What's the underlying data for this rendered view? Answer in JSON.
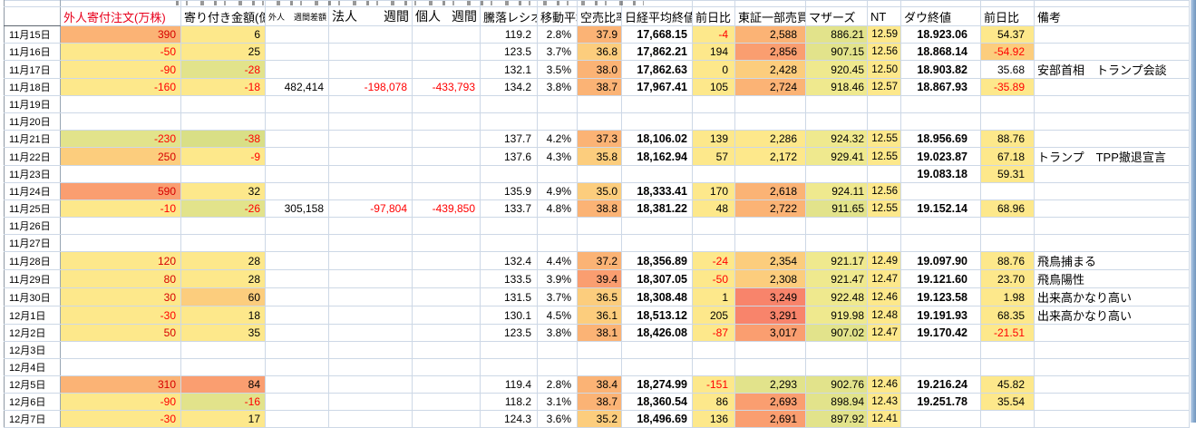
{
  "sheet": {
    "headers": {
      "a": "",
      "b": "外人寄付注文(万株)",
      "c": "寄り付き金額(億)",
      "d_left": "外人",
      "d_right": "週間差額",
      "e_left": "法人",
      "e_right": "週間",
      "f_left": "個人",
      "f_right": "週間",
      "g": "騰落レシオ",
      "h": "移動平均",
      "i": "空売比率",
      "j": "日経平均終値",
      "k": "前日比",
      "l": "東証一部売買",
      "m": "マザーズ",
      "n": "NT",
      "o": "ダウ終値",
      "p": "前日比",
      "q": "備考"
    },
    "column_order": [
      "b",
      "c",
      "d",
      "e",
      "f",
      "g",
      "h",
      "i",
      "j",
      "k",
      "l",
      "m",
      "n",
      "o",
      "p",
      "q"
    ],
    "colors": {
      "y": "#FDE88B",
      "y2": "#EFE98E",
      "yg": "#E2E38B",
      "yg2": "#D9DF86",
      "o1": "#F8846B",
      "o2": "#FA9E70",
      "o3": "#FBB375",
      "o4": "#FCCD7D",
      "header_pink": "#F8BCC4",
      "negative_text": "#FF0000",
      "gridline": "#CDD8E6"
    },
    "rows": [
      {
        "date": "11月15日",
        "cells": {
          "b": [
            "390",
            "o3"
          ],
          "c": [
            "6",
            "y"
          ],
          "g": [
            "119.2"
          ],
          "h": [
            "2.8%"
          ],
          "i": [
            "37.9",
            "o3"
          ],
          "j": [
            "17,668.15"
          ],
          "k": [
            "-4",
            "y"
          ],
          "l": [
            "2,588",
            "o3"
          ],
          "m": [
            "886.21",
            "yg"
          ],
          "n": [
            "12.59",
            "y"
          ],
          "o": [
            "18.923.06"
          ],
          "p": [
            "54.37",
            "y"
          ]
        }
      },
      {
        "date": "11月16日",
        "cells": {
          "b": [
            "-50",
            "y"
          ],
          "c": [
            "25",
            "y"
          ],
          "g": [
            "123.5"
          ],
          "h": [
            "3.7%"
          ],
          "i": [
            "36.8",
            "o4"
          ],
          "j": [
            "17,862.21"
          ],
          "k": [
            "194",
            "y"
          ],
          "l": [
            "2,856",
            "o2"
          ],
          "m": [
            "907.15",
            "yg"
          ],
          "n": [
            "12.56",
            "y"
          ],
          "o": [
            "18.868.14"
          ],
          "p": [
            "-54.92",
            "o4"
          ]
        }
      },
      {
        "date": "11月17日",
        "cells": {
          "b": [
            "-90",
            "y"
          ],
          "c": [
            "-28",
            "yg"
          ],
          "g": [
            "132.1"
          ],
          "h": [
            "3.5%"
          ],
          "i": [
            "38.0",
            "o3"
          ],
          "j": [
            "17,862.63"
          ],
          "k": [
            "0",
            "y"
          ],
          "l": [
            "2,428",
            "o4"
          ],
          "m": [
            "920.45",
            "y2"
          ],
          "n": [
            "12.50",
            "y"
          ],
          "o": [
            "18.903.82"
          ],
          "p": [
            "35.68"
          ],
          "q": [
            "安部首相　トランプ会談"
          ]
        }
      },
      {
        "date": "11月18日",
        "cells": {
          "b": [
            "-160",
            "y"
          ],
          "c": [
            "-18",
            "y"
          ],
          "d": [
            "482,414"
          ],
          "e": [
            "-198,078"
          ],
          "f": [
            "-433,793"
          ],
          "g": [
            "134.2"
          ],
          "h": [
            "3.8%"
          ],
          "i": [
            "38.7",
            "o3"
          ],
          "j": [
            "17,967.41"
          ],
          "k": [
            "105",
            "y"
          ],
          "l": [
            "2,724",
            "o3"
          ],
          "m": [
            "918.46",
            "y2"
          ],
          "n": [
            "12.57",
            "y"
          ],
          "o": [
            "18.867.93"
          ],
          "p": [
            "-35.89",
            "y"
          ]
        }
      },
      {
        "date": "11月19日",
        "cells": {}
      },
      {
        "date": "11月20日",
        "cells": {}
      },
      {
        "date": "11月21日",
        "cells": {
          "b": [
            "-230",
            "yg"
          ],
          "c": [
            "-38",
            "yg2"
          ],
          "g": [
            "137.7"
          ],
          "h": [
            "4.2%"
          ],
          "i": [
            "37.3",
            "o3"
          ],
          "j": [
            "18,106.02"
          ],
          "k": [
            "139",
            "y"
          ],
          "l": [
            "2,286",
            "y"
          ],
          "m": [
            "924.32",
            "y2"
          ],
          "n": [
            "12.55",
            "y"
          ],
          "o": [
            "18.956.69"
          ],
          "p": [
            "88.76",
            "y"
          ]
        }
      },
      {
        "date": "11月22日",
        "cells": {
          "b": [
            "250",
            "o4"
          ],
          "c": [
            "-9",
            "y"
          ],
          "g": [
            "137.6"
          ],
          "h": [
            "4.3%"
          ],
          "i": [
            "35.8",
            "o4"
          ],
          "j": [
            "18,162.94"
          ],
          "k": [
            "57",
            "y"
          ],
          "l": [
            "2,172",
            "y"
          ],
          "m": [
            "929.41",
            "y2"
          ],
          "n": [
            "12.55",
            "y"
          ],
          "o": [
            "19.023.87"
          ],
          "p": [
            "67.18",
            "y"
          ],
          "q": [
            "トランプ　TPP撤退宣言"
          ]
        }
      },
      {
        "date": "11月23日",
        "cells": {
          "o": [
            "19.083.18"
          ],
          "p": [
            "59.31",
            "y"
          ]
        }
      },
      {
        "date": "11月24日",
        "cells": {
          "b": [
            "590",
            "o2"
          ],
          "c": [
            "32",
            "y"
          ],
          "g": [
            "135.9"
          ],
          "h": [
            "4.9%"
          ],
          "i": [
            "35.0",
            "o4"
          ],
          "j": [
            "18,333.41"
          ],
          "k": [
            "170",
            "y"
          ],
          "l": [
            "2,618",
            "o3"
          ],
          "m": [
            "924.11",
            "y2"
          ],
          "n": [
            "12.56",
            "y"
          ]
        }
      },
      {
        "date": "11月25日",
        "cells": {
          "b": [
            "-10",
            "y"
          ],
          "c": [
            "-26",
            "yg"
          ],
          "d": [
            "305,158"
          ],
          "e": [
            "-97,804"
          ],
          "f": [
            "-439,850"
          ],
          "g": [
            "133.7"
          ],
          "h": [
            "4.8%"
          ],
          "i": [
            "38.8",
            "o3"
          ],
          "j": [
            "18,381.22"
          ],
          "k": [
            "48",
            "y"
          ],
          "l": [
            "2,722",
            "o3"
          ],
          "m": [
            "911.65",
            "yg"
          ],
          "n": [
            "12.55",
            "y"
          ],
          "o": [
            "19.152.14"
          ],
          "p": [
            "68.96",
            "y"
          ]
        }
      },
      {
        "date": "11月26日",
        "cells": {}
      },
      {
        "date": "11月27日",
        "cells": {}
      },
      {
        "date": "11月28日",
        "cells": {
          "b": [
            "120",
            "y"
          ],
          "c": [
            "28",
            "y"
          ],
          "g": [
            "132.4"
          ],
          "h": [
            "4.4%"
          ],
          "i": [
            "37.2",
            "o3"
          ],
          "j": [
            "18,356.89"
          ],
          "k": [
            "-24",
            "y"
          ],
          "l": [
            "2,354",
            "o4"
          ],
          "m": [
            "921.17",
            "y2"
          ],
          "n": [
            "12.49",
            "y"
          ],
          "o": [
            "19.097.90"
          ],
          "p": [
            "88.76",
            "y"
          ],
          "q": [
            "飛鳥捕まる"
          ]
        }
      },
      {
        "date": "11月29日",
        "cells": {
          "b": [
            "80",
            "y"
          ],
          "c": [
            "28",
            "y"
          ],
          "g": [
            "133.5"
          ],
          "h": [
            "3.9%"
          ],
          "i": [
            "39.4",
            "o2"
          ],
          "j": [
            "18,307.05"
          ],
          "k": [
            "-50",
            "y"
          ],
          "l": [
            "2,308",
            "o4"
          ],
          "m": [
            "921.47",
            "y2"
          ],
          "n": [
            "12.47",
            "y"
          ],
          "o": [
            "19.121.60"
          ],
          "p": [
            "23.70",
            "y"
          ],
          "q": [
            "飛鳥陽性"
          ]
        }
      },
      {
        "date": "11月30日",
        "cells": {
          "b": [
            "30",
            "y"
          ],
          "c": [
            "60",
            "o4"
          ],
          "g": [
            "131.5"
          ],
          "h": [
            "3.7%"
          ],
          "i": [
            "36.5",
            "o4"
          ],
          "j": [
            "18,308.48"
          ],
          "k": [
            "1",
            "y"
          ],
          "l": [
            "3,249",
            "o1"
          ],
          "m": [
            "922.48",
            "y2"
          ],
          "n": [
            "12.46",
            "y"
          ],
          "o": [
            "19.123.58"
          ],
          "p": [
            "1.98",
            "y"
          ],
          "q": [
            "出来高かなり高い"
          ]
        }
      },
      {
        "date": "12月1日",
        "cells": {
          "b": [
            "-30",
            "y"
          ],
          "c": [
            "18",
            "y"
          ],
          "g": [
            "130.1"
          ],
          "h": [
            "4.5%"
          ],
          "i": [
            "36.1",
            "o4"
          ],
          "j": [
            "18,513.12"
          ],
          "k": [
            "205",
            "y"
          ],
          "l": [
            "3,291",
            "o1"
          ],
          "m": [
            "919.98",
            "y2"
          ],
          "n": [
            "12.48",
            "y"
          ],
          "o": [
            "19.191.93"
          ],
          "p": [
            "68.35",
            "y"
          ],
          "q": [
            "出来高かなり高い"
          ]
        }
      },
      {
        "date": "12月2日",
        "cells": {
          "b": [
            "50",
            "y"
          ],
          "c": [
            "35",
            "y"
          ],
          "g": [
            "123.5"
          ],
          "h": [
            "3.8%"
          ],
          "i": [
            "38.1",
            "o3"
          ],
          "j": [
            "18,426.08"
          ],
          "k": [
            "-87",
            "y"
          ],
          "l": [
            "3,017",
            "o2"
          ],
          "m": [
            "907.02",
            "yg"
          ],
          "n": [
            "12.47",
            "y"
          ],
          "o": [
            "19.170.42"
          ],
          "p": [
            "-21.51",
            "y"
          ]
        }
      },
      {
        "date": "12月3日",
        "cells": {}
      },
      {
        "date": "12月4日",
        "cells": {}
      },
      {
        "date": "12月5日",
        "cells": {
          "b": [
            "310",
            "o3"
          ],
          "c": [
            "84",
            "o2"
          ],
          "g": [
            "119.4"
          ],
          "h": [
            "2.8%"
          ],
          "i": [
            "38.4",
            "o3"
          ],
          "j": [
            "18,274.99"
          ],
          "k": [
            "-151",
            "y"
          ],
          "l": [
            "2,293",
            "yg"
          ],
          "m": [
            "902.76",
            "yg"
          ],
          "n": [
            "12.46",
            "y"
          ],
          "o": [
            "19.216.24"
          ],
          "p": [
            "45.82",
            "y"
          ]
        }
      },
      {
        "date": "12月6日",
        "cells": {
          "b": [
            "-90",
            "y"
          ],
          "c": [
            "-16",
            "yg"
          ],
          "g": [
            "118.2"
          ],
          "h": [
            "3.1%"
          ],
          "i": [
            "38.7",
            "o3"
          ],
          "j": [
            "18,360.54"
          ],
          "k": [
            "86",
            "y"
          ],
          "l": [
            "2,693",
            "o2"
          ],
          "m": [
            "898.94",
            "yg"
          ],
          "n": [
            "12.43",
            "y"
          ],
          "o": [
            "19.251.78"
          ],
          "p": [
            "35.54",
            "y"
          ]
        }
      },
      {
        "date": "12月7日",
        "cells": {
          "b": [
            "-30",
            "y"
          ],
          "c": [
            "17",
            "y"
          ],
          "g": [
            "124.3"
          ],
          "h": [
            "3.6%"
          ],
          "i": [
            "35.2",
            "o4"
          ],
          "j": [
            "18,496.69"
          ],
          "k": [
            "136",
            "y"
          ],
          "l": [
            "2,691",
            "o2"
          ],
          "m": [
            "897.92",
            "yg"
          ],
          "n": [
            "12.41",
            "y"
          ]
        }
      }
    ]
  }
}
